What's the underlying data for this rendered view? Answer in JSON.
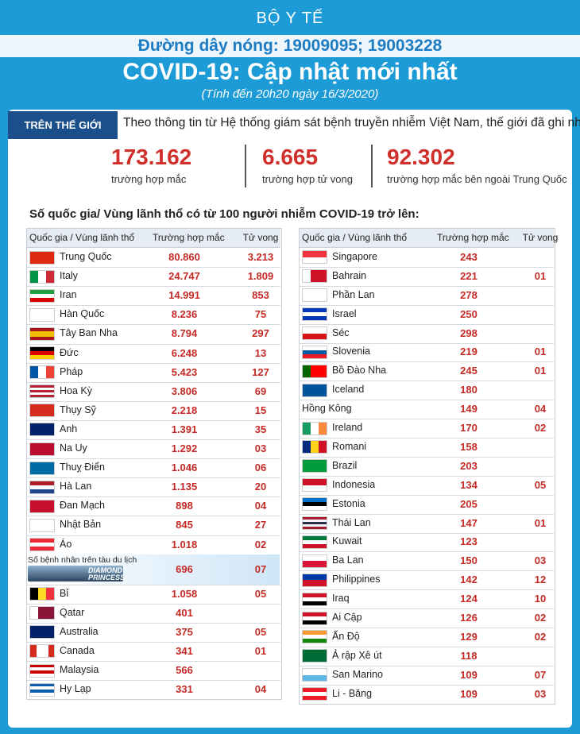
{
  "header": {
    "org": "BỘ Y TẾ",
    "hotline": "Đường dây nóng: 19009095; 19003228",
    "title": "COVID-19: Cập nhật mới nhất",
    "subtitle": "(Tính đến 20h20  ngày 16/3/2020)"
  },
  "world": {
    "tag": "TRÊN THẾ GIỚI",
    "intro": "Theo thông tin từ Hệ thống giám sát bệnh truyền nhiễm Việt Nam, thế giới đã ghi nhận:",
    "stats": [
      {
        "value": "173.162",
        "label": "trường hợp mắc"
      },
      {
        "value": "6.665",
        "label": "trường hợp tử vong"
      },
      {
        "value": "92.302",
        "label": "trường hợp  mắc bên ngoài Trung Quốc"
      }
    ]
  },
  "section_title": "Số quốc gia/ Vùng lãnh thổ có từ 100 người  nhiễm COVID-19 trở lên:",
  "ship_label": "DIAMOND PRINCESS",
  "tables": [
    {
      "header": [
        "Quốc gia / Vùng lãnh thổ",
        "Trường hợp mắc",
        "Tử vong"
      ],
      "rows": [
        [
          "Trung Quốc",
          "80.860",
          "3.213"
        ],
        [
          "Italy",
          "24.747",
          "1.809"
        ],
        [
          "Iran",
          "14.991",
          "853"
        ],
        [
          "Hàn Quốc",
          "8.236",
          "75"
        ],
        [
          "Tây Ban Nha",
          "8.794",
          "297"
        ],
        [
          "Đức",
          "6.248",
          "13"
        ],
        [
          "Pháp",
          "5.423",
          "127"
        ],
        [
          "Hoa Kỳ",
          "3.806",
          "69"
        ],
        [
          "Thụy Sỹ",
          "2.218",
          "15"
        ],
        [
          "Anh",
          "1.391",
          "35"
        ],
        [
          "Na Uy",
          "1.292",
          "03"
        ],
        [
          "Thuỵ Điển",
          "1.046",
          "06"
        ],
        [
          "Hà Lan",
          "1.135",
          "20"
        ],
        [
          "Đan Mạch",
          "898",
          "04"
        ],
        [
          "Nhật Bản",
          "845",
          "27"
        ],
        [
          "Áo",
          "1.018",
          "02"
        ],
        [
          "Số bệnh nhân trên tàu du lịch",
          "696",
          "07"
        ],
        [
          "Bỉ",
          "1.058",
          "05"
        ],
        [
          "Qatar",
          "401",
          null
        ],
        [
          "Australia",
          "375",
          "05"
        ],
        [
          "Canada",
          "341",
          "01"
        ],
        [
          "Malaysia",
          "566",
          null
        ],
        [
          "Hy Lạp",
          "331",
          "04"
        ]
      ]
    },
    {
      "header": [
        "Quốc gia / Vùng lãnh thổ",
        "Trường hợp mắc",
        "Tử vong"
      ],
      "rows": [
        [
          "Singapore",
          "243",
          null
        ],
        [
          "Bahrain",
          "221",
          "01"
        ],
        [
          "Phần Lan",
          "278",
          null
        ],
        [
          "Israel",
          "250",
          null
        ],
        [
          "Séc",
          "298",
          null
        ],
        [
          "Slovenia",
          "219",
          "01"
        ],
        [
          "Bồ Đào Nha",
          "245",
          "01"
        ],
        [
          "Iceland",
          "180",
          null
        ],
        [
          "Hồng Kông",
          "149",
          "04"
        ],
        [
          "Ireland",
          "170",
          "02"
        ],
        [
          "Romani",
          "158",
          null
        ],
        [
          "Brazil",
          "203",
          null
        ],
        [
          "Indonesia",
          "134",
          "05"
        ],
        [
          "Estonia",
          "205",
          null
        ],
        [
          "Thái Lan",
          "147",
          "01"
        ],
        [
          "Kuwait",
          "123",
          null
        ],
        [
          "Ba Lan",
          "150",
          "03"
        ],
        [
          "Philippines",
          "142",
          "12"
        ],
        [
          "Iraq",
          "124",
          "10"
        ],
        [
          "Ai Cập",
          "126",
          "02"
        ],
        [
          "Ấn Độ",
          "129",
          "02"
        ],
        [
          "Ả rập Xê út",
          "118",
          null
        ],
        [
          "San Marino",
          "109",
          "07"
        ],
        [
          "Li - Băng",
          "109",
          "03"
        ]
      ]
    }
  ]
}
